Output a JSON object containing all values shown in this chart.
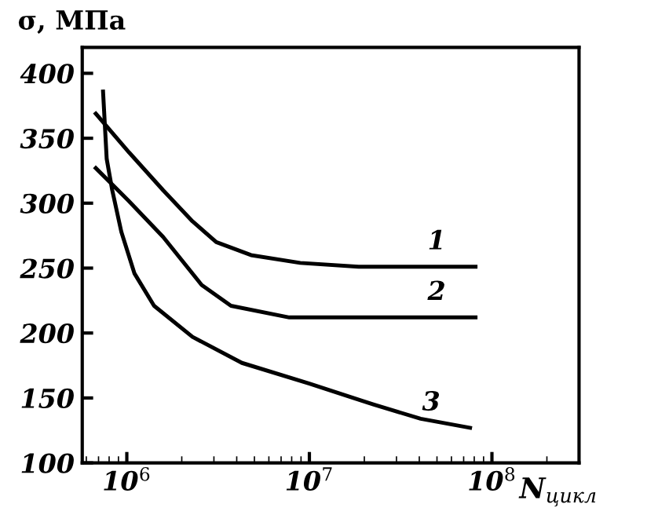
{
  "chart_data": {
    "type": "line",
    "ylabel": "σ, МПа",
    "xlabel": "N$_{цикл}$",
    "log": "x",
    "xlim": [
      570000,
      300000000
    ],
    "ylim": [
      100,
      420
    ],
    "xticks": [
      {
        "value": 1000000,
        "label": "10$^{6}$"
      },
      {
        "value": 10000000,
        "label": "10$^{7}$"
      },
      {
        "value": 100000000,
        "label": "10$^{8}$"
      }
    ],
    "yticks": [
      100,
      150,
      200,
      250,
      300,
      350,
      400
    ],
    "grid": false,
    "legend": false,
    "marker": "none",
    "line_style": "solid",
    "series": [
      {
        "name": "1",
        "color": "#000000",
        "x": [
          676000,
          1030000,
          1580000,
          2290000,
          3090000,
          4790000,
          8910000,
          18600000,
          81300000
        ],
        "values": [
          369,
          339,
          310,
          286,
          270,
          260,
          254,
          251,
          251
        ]
      },
      {
        "name": "2",
        "color": "#000000",
        "x": [
          676000,
          1020000,
          1580000,
          2570000,
          3720000,
          7760000,
          81300000
        ],
        "values": [
          327,
          302,
          274,
          237,
          221,
          212,
          212
        ]
      },
      {
        "name": "3",
        "color": "#000000",
        "x": [
          741000,
          776000,
          832000,
          933000,
          1100000,
          1410000,
          2290000,
          4270000,
          10000000,
          22400000,
          40700000,
          75900000
        ],
        "values": [
          386,
          334,
          310,
          278,
          246,
          221,
          197,
          177,
          161,
          145,
          134,
          127
        ]
      }
    ]
  }
}
